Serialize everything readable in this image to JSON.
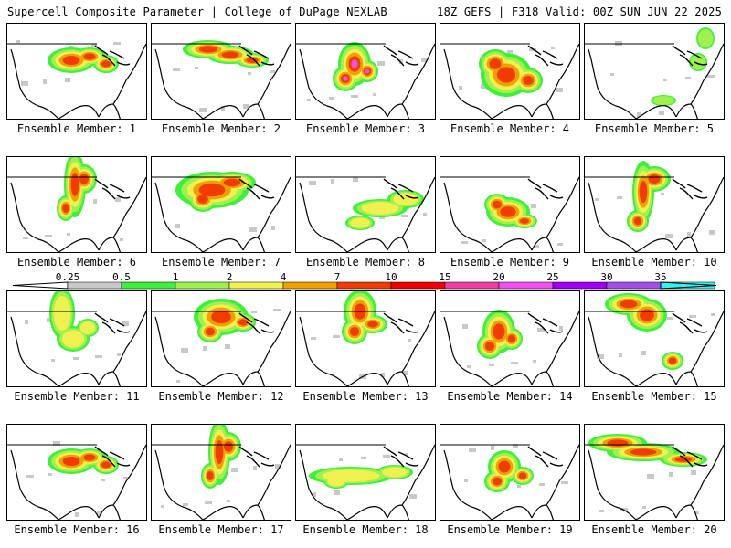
{
  "header": {
    "title_left": "Supercell Composite Parameter | College of DuPage NEXLAB",
    "title_right": "18Z GEFS | F318 Valid: 00Z SUN JUN 22 2025"
  },
  "panels": [
    {
      "label": "Ensemble Member: 1",
      "feature": "northern-plains-great-lakes",
      "intensity": "high"
    },
    {
      "label": "Ensemble Member: 2",
      "feature": "upper-midwest-band",
      "intensity": "high"
    },
    {
      "label": "Ensemble Member: 3",
      "feature": "central-plains-core",
      "intensity": "extreme"
    },
    {
      "label": "Ensemble Member: 4",
      "feature": "central-plains-broad",
      "intensity": "high"
    },
    {
      "label": "Ensemble Member: 5",
      "feature": "northeast-scattered",
      "intensity": "low"
    },
    {
      "label": "Ensemble Member: 6",
      "feature": "northern-plains-vertical",
      "intensity": "high"
    },
    {
      "label": "Ensemble Member: 7",
      "feature": "northern-plains-broad",
      "intensity": "high"
    },
    {
      "label": "Ensemble Member: 8",
      "feature": "southeast-band",
      "intensity": "moderate"
    },
    {
      "label": "Ensemble Member: 9",
      "feature": "southern-plains-core",
      "intensity": "high"
    },
    {
      "label": "Ensemble Member: 10",
      "feature": "plains-vertical-band",
      "intensity": "high"
    },
    {
      "label": "Ensemble Member: 11",
      "feature": "northern-plains-scattered",
      "intensity": "moderate"
    },
    {
      "label": "Ensemble Member: 12",
      "feature": "upper-midwest-core",
      "intensity": "high"
    },
    {
      "label": "Ensemble Member: 13",
      "feature": "upper-midwest-southward",
      "intensity": "high"
    },
    {
      "label": "Ensemble Member: 14",
      "feature": "central-plains-core",
      "intensity": "high"
    },
    {
      "label": "Ensemble Member: 15",
      "feature": "plains-diagonal",
      "intensity": "high"
    },
    {
      "label": "Ensemble Member: 16",
      "feature": "northern-plains-great-lakes",
      "intensity": "high"
    },
    {
      "label": "Ensemble Member: 17",
      "feature": "northern-plains-vertical",
      "intensity": "high"
    },
    {
      "label": "Ensemble Member: 18",
      "feature": "southern-band",
      "intensity": "moderate"
    },
    {
      "label": "Ensemble Member: 19",
      "feature": "central-plains-scattered",
      "intensity": "high"
    },
    {
      "label": "Ensemble Member: 20",
      "feature": "plains-to-east-band",
      "intensity": "high"
    }
  ],
  "colorbar": {
    "tick_labels": [
      "0.25",
      "0.5",
      "1",
      "2",
      "4",
      "7",
      "10",
      "15",
      "20",
      "25",
      "30",
      "35"
    ],
    "colors": [
      "#c8c8c8",
      "#3cf03c",
      "#a0f050",
      "#f0f050",
      "#f0a000",
      "#f03c00",
      "#f00000",
      "#f03ca0",
      "#f050f0",
      "#a000f0",
      "#a050e6",
      "#32f0f0"
    ]
  }
}
